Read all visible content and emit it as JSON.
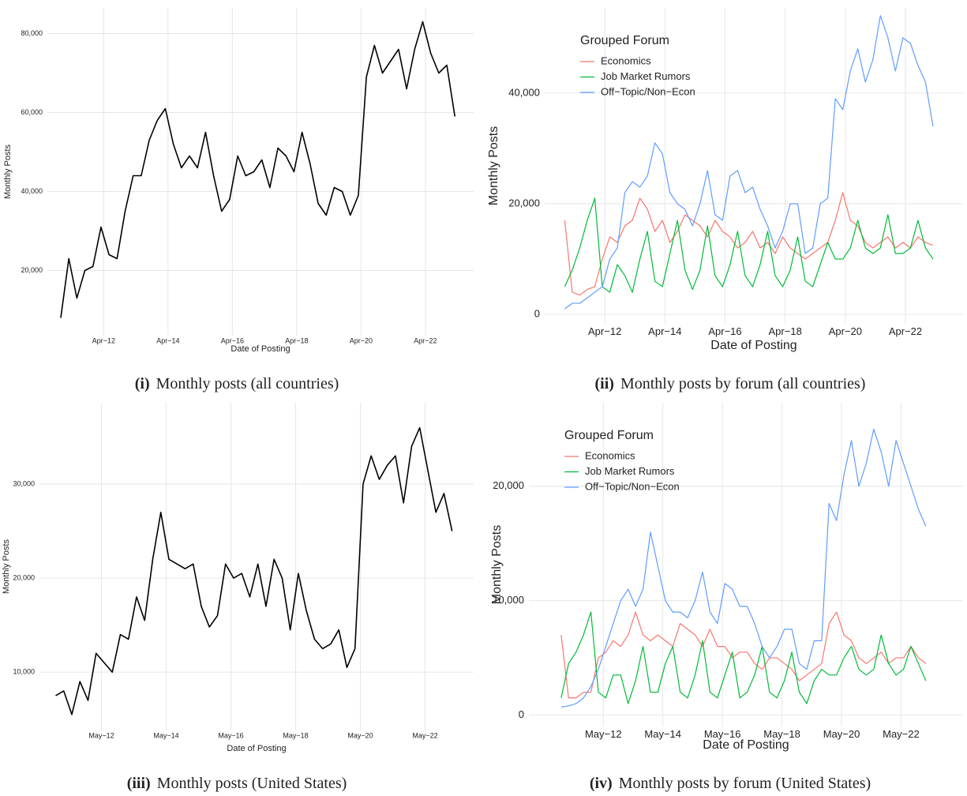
{
  "chart_data": [
    {
      "type": "line",
      "caption_label": "(i)",
      "caption": "Monthly posts (all countries)",
      "xlabel": "Date of Posting",
      "ylabel": "Monthly Posts",
      "x": [
        "2010-12",
        "2011-03",
        "2011-06",
        "2011-09",
        "2011-12",
        "2012-03",
        "2012-06",
        "2012-09",
        "2012-12",
        "2013-03",
        "2013-06",
        "2013-09",
        "2013-12",
        "2014-03",
        "2014-06",
        "2014-09",
        "2014-12",
        "2015-03",
        "2015-06",
        "2015-09",
        "2015-12",
        "2016-03",
        "2016-06",
        "2016-09",
        "2016-12",
        "2017-03",
        "2017-06",
        "2017-09",
        "2017-12",
        "2018-03",
        "2018-06",
        "2018-09",
        "2018-12",
        "2019-03",
        "2019-06",
        "2019-09",
        "2019-12",
        "2020-03",
        "2020-06",
        "2020-09",
        "2020-12",
        "2021-03",
        "2021-06",
        "2021-09",
        "2021-12",
        "2022-03",
        "2022-06",
        "2022-09",
        "2022-12",
        "2023-03"
      ],
      "values": [
        8000,
        23000,
        13000,
        20000,
        21000,
        31000,
        24000,
        23000,
        35000,
        44000,
        44000,
        53000,
        58000,
        61000,
        52000,
        46000,
        49000,
        46000,
        55000,
        44000,
        35000,
        38000,
        49000,
        44000,
        45000,
        48000,
        41000,
        51000,
        49000,
        45000,
        55000,
        47000,
        37000,
        34000,
        41000,
        40000,
        34000,
        39000,
        69000,
        77000,
        70000,
        73000,
        76000,
        66000,
        76000,
        83000,
        75000,
        70000,
        72000,
        59000
      ],
      "color": "#000000",
      "xlim": [
        "2010-07",
        "2023-10"
      ],
      "ylim": [
        3500,
        86500
      ],
      "xticks": [
        {
          "value": "2012-04",
          "label": "Apr−12"
        },
        {
          "value": "2014-04",
          "label": "Apr−14"
        },
        {
          "value": "2016-04",
          "label": "Apr−16"
        },
        {
          "value": "2018-04",
          "label": "Apr−18"
        },
        {
          "value": "2020-04",
          "label": "Apr−20"
        },
        {
          "value": "2022-04",
          "label": "Apr−22"
        }
      ],
      "yticks": [
        {
          "value": 20000,
          "label": "20,000"
        },
        {
          "value": 40000,
          "label": "40,000"
        },
        {
          "value": 60000,
          "label": "60,000"
        },
        {
          "value": 80000,
          "label": "80,000"
        }
      ],
      "grid": true
    },
    {
      "type": "line",
      "caption_label": "(ii)",
      "caption": "Monthly posts by forum (all countries)",
      "xlabel": "Date of Posting",
      "ylabel": "Monthly Posts",
      "legend_title": "Grouped Forum",
      "legend": "top-left",
      "x": [
        "2010-12",
        "2011-03",
        "2011-06",
        "2011-09",
        "2011-12",
        "2012-03",
        "2012-06",
        "2012-09",
        "2012-12",
        "2013-03",
        "2013-06",
        "2013-09",
        "2013-12",
        "2014-03",
        "2014-06",
        "2014-09",
        "2014-12",
        "2015-03",
        "2015-06",
        "2015-09",
        "2015-12",
        "2016-03",
        "2016-06",
        "2016-09",
        "2016-12",
        "2017-03",
        "2017-06",
        "2017-09",
        "2017-12",
        "2018-03",
        "2018-06",
        "2018-09",
        "2018-12",
        "2019-03",
        "2019-06",
        "2019-09",
        "2019-12",
        "2020-03",
        "2020-06",
        "2020-09",
        "2020-12",
        "2021-03",
        "2021-06",
        "2021-09",
        "2021-12",
        "2022-03",
        "2022-06",
        "2022-09",
        "2022-12",
        "2023-03"
      ],
      "series": [
        {
          "name": "Economics",
          "color": "#F8766D",
          "values": [
            17000,
            4000,
            3500,
            4500,
            5000,
            10000,
            14000,
            13000,
            16000,
            17000,
            21000,
            19000,
            15000,
            17000,
            13000,
            15000,
            18000,
            17000,
            16000,
            14000,
            17000,
            15000,
            14000,
            12000,
            13000,
            15000,
            12000,
            13000,
            11000,
            14000,
            12000,
            11000,
            10000,
            11000,
            12000,
            13000,
            17000,
            22000,
            17000,
            16000,
            13000,
            12000,
            13000,
            14000,
            12000,
            13000,
            12000,
            14000,
            13000,
            12500
          ]
        },
        {
          "name": "Job Market Rumors",
          "color": "#00BA38",
          "values": [
            5000,
            8000,
            12000,
            17000,
            21000,
            5000,
            4000,
            9000,
            7000,
            4000,
            10000,
            15000,
            6000,
            5000,
            11000,
            17000,
            8000,
            4500,
            8000,
            16000,
            7000,
            5000,
            9000,
            15000,
            7000,
            5000,
            9000,
            15000,
            7000,
            5000,
            8000,
            14000,
            6000,
            5000,
            9000,
            13000,
            10000,
            10000,
            12000,
            17000,
            12000,
            11000,
            12000,
            18000,
            11000,
            11000,
            12000,
            17000,
            12000,
            10000
          ]
        },
        {
          "name": "Off−Topic/Non−Econ",
          "color": "#619CFF",
          "values": [
            1000,
            2000,
            2000,
            3000,
            4000,
            5000,
            10000,
            12000,
            22000,
            24000,
            23000,
            25000,
            31000,
            29000,
            22000,
            20000,
            19000,
            16000,
            20000,
            26000,
            18000,
            17000,
            25000,
            26000,
            22000,
            23000,
            19000,
            16000,
            12000,
            15000,
            20000,
            20000,
            11000,
            12000,
            20000,
            21000,
            39000,
            37000,
            44000,
            48000,
            42000,
            46000,
            54000,
            50000,
            44000,
            50000,
            49000,
            45000,
            42000,
            34000
          ]
        }
      ],
      "xlim": [
        "2010-04",
        "2024-03"
      ],
      "ylim": [
        -1700,
        55400
      ],
      "xticks": [
        {
          "value": "2012-04",
          "label": "Apr−12"
        },
        {
          "value": "2014-04",
          "label": "Apr−14"
        },
        {
          "value": "2016-04",
          "label": "Apr−16"
        },
        {
          "value": "2018-04",
          "label": "Apr−18"
        },
        {
          "value": "2020-04",
          "label": "Apr−20"
        },
        {
          "value": "2022-04",
          "label": "Apr−22"
        }
      ],
      "yticks": [
        0,
        {
          "value": 20000,
          "label": "20,000"
        },
        {
          "value": 40000,
          "label": "40,000"
        }
      ],
      "grid": true
    },
    {
      "type": "line",
      "caption_label": "(iii)",
      "caption": "Monthly posts (United States)",
      "xlabel": "Date of Posting",
      "ylabel": "Monthly Posts",
      "x": [
        "2010-12",
        "2011-03",
        "2011-06",
        "2011-09",
        "2011-12",
        "2012-03",
        "2012-06",
        "2012-09",
        "2012-12",
        "2013-03",
        "2013-06",
        "2013-09",
        "2013-12",
        "2014-03",
        "2014-06",
        "2014-09",
        "2014-12",
        "2015-03",
        "2015-06",
        "2015-09",
        "2015-12",
        "2016-03",
        "2016-06",
        "2016-09",
        "2016-12",
        "2017-03",
        "2017-06",
        "2017-09",
        "2017-12",
        "2018-03",
        "2018-06",
        "2018-09",
        "2018-12",
        "2019-03",
        "2019-06",
        "2019-09",
        "2019-12",
        "2020-03",
        "2020-06",
        "2020-09",
        "2020-12",
        "2021-03",
        "2021-06",
        "2021-09",
        "2021-12",
        "2022-03",
        "2022-06",
        "2022-09",
        "2022-12",
        "2023-03"
      ],
      "values": [
        7500,
        8000,
        5500,
        9000,
        7000,
        12000,
        11000,
        10000,
        14000,
        13500,
        18000,
        15500,
        22000,
        27000,
        22000,
        21500,
        21000,
        21500,
        17000,
        14800,
        16000,
        21500,
        20000,
        20500,
        18000,
        21500,
        17000,
        22000,
        20000,
        14500,
        20500,
        16500,
        13500,
        12500,
        13000,
        14500,
        10500,
        12500,
        30000,
        33000,
        30500,
        32000,
        33000,
        28000,
        34000,
        36000,
        31500,
        27000,
        29000,
        25000
      ],
      "color": "#000000",
      "xlim": [
        "2010-06",
        "2023-11"
      ],
      "ylim": [
        3800,
        38650
      ],
      "xticks": [
        {
          "value": "2012-05",
          "label": "May−12"
        },
        {
          "value": "2014-05",
          "label": "May−14"
        },
        {
          "value": "2016-05",
          "label": "May−16"
        },
        {
          "value": "2018-05",
          "label": "May−18"
        },
        {
          "value": "2020-05",
          "label": "May−20"
        },
        {
          "value": "2022-05",
          "label": "May−22"
        }
      ],
      "yticks": [
        {
          "value": 10000,
          "label": "10,000"
        },
        {
          "value": 20000,
          "label": "20,000"
        },
        {
          "value": 30000,
          "label": "30,000"
        }
      ],
      "grid": true
    },
    {
      "type": "line",
      "caption_label": "(iv)",
      "caption": "Monthly posts by forum (United States)",
      "xlabel": "Date of Posting",
      "ylabel": "Monthly Posts",
      "legend_title": "Grouped Forum",
      "legend": "top-left",
      "x": [
        "2010-12",
        "2011-03",
        "2011-06",
        "2011-09",
        "2011-12",
        "2012-03",
        "2012-06",
        "2012-09",
        "2012-12",
        "2013-03",
        "2013-06",
        "2013-09",
        "2013-12",
        "2014-03",
        "2014-06",
        "2014-09",
        "2014-12",
        "2015-03",
        "2015-06",
        "2015-09",
        "2015-12",
        "2016-03",
        "2016-06",
        "2016-09",
        "2016-12",
        "2017-03",
        "2017-06",
        "2017-09",
        "2017-12",
        "2018-03",
        "2018-06",
        "2018-09",
        "2018-12",
        "2019-03",
        "2019-06",
        "2019-09",
        "2019-12",
        "2020-03",
        "2020-06",
        "2020-09",
        "2020-12",
        "2021-03",
        "2021-06",
        "2021-09",
        "2021-12",
        "2022-03",
        "2022-06",
        "2022-09",
        "2022-12",
        "2023-03"
      ],
      "series": [
        {
          "name": "Economics",
          "color": "#F8766D",
          "values": [
            7000,
            1500,
            1500,
            2000,
            2000,
            5000,
            5500,
            6500,
            6000,
            7000,
            9000,
            7000,
            6500,
            7000,
            6500,
            6000,
            8000,
            7500,
            7000,
            6000,
            7500,
            6000,
            6000,
            5000,
            5500,
            5500,
            4500,
            4000,
            5000,
            5000,
            4500,
            4000,
            3000,
            3500,
            4000,
            4500,
            8000,
            9000,
            7000,
            6500,
            5000,
            4500,
            5000,
            5500,
            4500,
            5000,
            5000,
            6000,
            5000,
            4500
          ]
        },
        {
          "name": "Job Market Rumors",
          "color": "#00BA38",
          "values": [
            1500,
            4500,
            5500,
            7000,
            9000,
            2000,
            1500,
            3500,
            3500,
            1000,
            3000,
            6000,
            2000,
            2000,
            4500,
            6000,
            2000,
            1500,
            3500,
            6500,
            2000,
            1500,
            3500,
            5500,
            1500,
            2000,
            3500,
            6000,
            2000,
            1500,
            3000,
            5500,
            2000,
            1000,
            3000,
            4000,
            3500,
            3500,
            5000,
            6000,
            4000,
            3500,
            4000,
            7000,
            4500,
            3500,
            4000,
            6000,
            4500,
            3000
          ]
        },
        {
          "name": "Off−Topic/Non−Econ",
          "color": "#619CFF",
          "values": [
            700,
            800,
            1000,
            1500,
            2500,
            4000,
            6000,
            8000,
            10000,
            11000,
            9500,
            11000,
            16000,
            13000,
            10000,
            9000,
            9000,
            8500,
            10000,
            12500,
            9000,
            8000,
            11500,
            11000,
            9500,
            9500,
            8000,
            6000,
            5000,
            6000,
            7500,
            7500,
            4500,
            4000,
            6500,
            6500,
            18500,
            17000,
            21000,
            24000,
            20000,
            22000,
            25000,
            23000,
            20000,
            24000,
            22000,
            20000,
            18000,
            16500
          ]
        }
      ],
      "xlim": [
        "2009-11",
        "2024-06"
      ],
      "ylim": [
        -1000,
        27300
      ],
      "xticks": [
        {
          "value": "2012-05",
          "label": "May−12"
        },
        {
          "value": "2014-05",
          "label": "May−14"
        },
        {
          "value": "2016-05",
          "label": "May−16"
        },
        {
          "value": "2018-05",
          "label": "May−18"
        },
        {
          "value": "2020-05",
          "label": "May−20"
        },
        {
          "value": "2022-05",
          "label": "May−22"
        }
      ],
      "yticks": [
        0,
        {
          "value": 10000,
          "label": "10,000"
        },
        {
          "value": 20000,
          "label": "20,000"
        }
      ],
      "grid": true
    }
  ]
}
